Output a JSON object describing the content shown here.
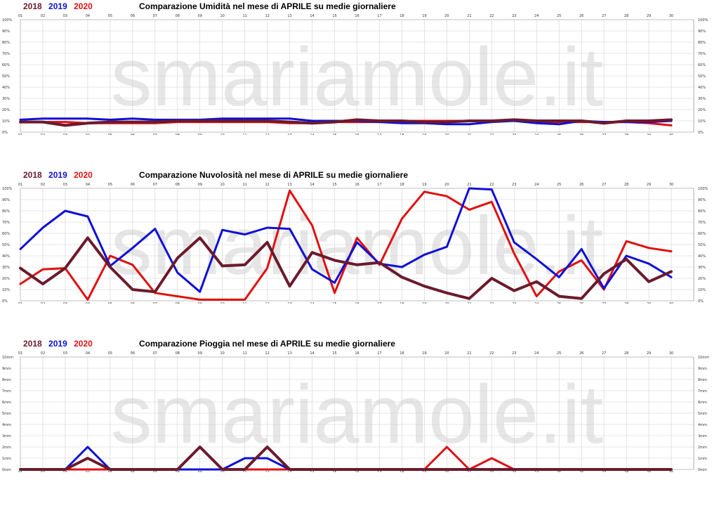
{
  "colors": {
    "2018": "#6b1a2c",
    "2019": "#0f0fd6",
    "2020": "#e01010"
  },
  "watermark": "smariamole.it",
  "chart_data": [
    {
      "type": "line",
      "title": "Comparazione Umidità nel mese di APRILE su medie giornaliere",
      "ylim": [
        0,
        100
      ],
      "y_ticks": [
        "0%",
        "10%",
        "20%",
        "30%",
        "40%",
        "50%",
        "60%",
        "70%",
        "80%",
        "90%",
        "100%"
      ],
      "x": [
        "01",
        "02",
        "03",
        "04",
        "05",
        "06",
        "07",
        "08",
        "09",
        "10",
        "11",
        "12",
        "13",
        "14",
        "15",
        "16",
        "17",
        "18",
        "19",
        "20",
        "21",
        "22",
        "23",
        "24",
        "25",
        "26",
        "27",
        "28",
        "29",
        "30"
      ],
      "series": [
        {
          "name": "2018",
          "values": [
            9,
            9,
            6,
            8,
            9,
            9,
            9,
            10,
            10,
            10,
            10,
            10,
            9,
            8,
            9,
            11,
            10,
            10,
            9,
            9,
            10,
            10,
            11,
            10,
            10,
            10,
            8,
            10,
            10,
            11
          ]
        },
        {
          "name": "2019",
          "values": [
            11,
            12,
            12,
            12,
            11,
            12,
            11,
            11,
            11,
            12,
            12,
            12,
            12,
            10,
            10,
            10,
            9,
            8,
            8,
            7,
            7,
            9,
            10,
            8,
            7,
            10,
            9,
            9,
            9,
            10
          ]
        },
        {
          "name": "2020",
          "values": [
            9,
            9,
            9,
            8,
            8,
            8,
            8,
            9,
            9,
            9,
            9,
            9,
            8,
            8,
            9,
            9,
            9,
            10,
            10,
            10,
            10,
            10,
            10,
            9,
            9,
            9,
            9,
            9,
            8,
            6
          ]
        }
      ]
    },
    {
      "type": "line",
      "title": "Comparazione Nuvolosità nel mese di APRILE su medie giornaliere",
      "ylim": [
        0,
        100
      ],
      "y_ticks": [
        "0%",
        "10%",
        "20%",
        "30%",
        "40%",
        "50%",
        "60%",
        "70%",
        "80%",
        "90%",
        "100%"
      ],
      "x": [
        "01",
        "02",
        "03",
        "04",
        "05",
        "06",
        "07",
        "08",
        "09",
        "10",
        "11",
        "12",
        "13",
        "14",
        "15",
        "16",
        "17",
        "18",
        "19",
        "20",
        "21",
        "22",
        "23",
        "24",
        "25",
        "26",
        "27",
        "28",
        "29",
        "30"
      ],
      "series": [
        {
          "name": "2018",
          "values": [
            29,
            15,
            29,
            56,
            30,
            10,
            8,
            38,
            56,
            31,
            32,
            52,
            13,
            43,
            36,
            32,
            34,
            21,
            13,
            7,
            2,
            20,
            9,
            17,
            4,
            2,
            24,
            37,
            17,
            26
          ]
        },
        {
          "name": "2019",
          "values": [
            46,
            65,
            80,
            75,
            31,
            47,
            64,
            25,
            8,
            63,
            59,
            65,
            64,
            28,
            16,
            52,
            33,
            30,
            41,
            48,
            100,
            99,
            52,
            37,
            21,
            46,
            11,
            40,
            33,
            21
          ]
        },
        {
          "name": "2020",
          "values": [
            15,
            28,
            29,
            1,
            40,
            32,
            7,
            4,
            1,
            1,
            1,
            29,
            98,
            67,
            7,
            56,
            32,
            73,
            97,
            93,
            81,
            88,
            42,
            4,
            26,
            36,
            10,
            53,
            47,
            44
          ]
        }
      ]
    },
    {
      "type": "line",
      "title": "Comparazione Pioggia nel mese di APRILE su medie giornaliere",
      "ylim": [
        0,
        10
      ],
      "y_ticks": [
        "0mm",
        "1mm",
        "2mm",
        "3mm",
        "4mm",
        "5mm",
        "6mm",
        "7mm",
        "8mm",
        "9mm",
        "10mm"
      ],
      "x": [
        "01",
        "02",
        "03",
        "04",
        "05",
        "06",
        "07",
        "08",
        "09",
        "10",
        "11",
        "12",
        "13",
        "14",
        "15",
        "16",
        "17",
        "18",
        "19",
        "20",
        "21",
        "22",
        "23",
        "24",
        "25",
        "26",
        "27",
        "28",
        "29",
        "30"
      ],
      "series": [
        {
          "name": "2018",
          "values": [
            0,
            0,
            0,
            1,
            0,
            0,
            0,
            0,
            2,
            0,
            0,
            2,
            0,
            0,
            0,
            0,
            0,
            0,
            0,
            0,
            0,
            0,
            0,
            0,
            0,
            0,
            0,
            0,
            0,
            0
          ]
        },
        {
          "name": "2019",
          "values": [
            0,
            0,
            0,
            2,
            0,
            0,
            0,
            0,
            0,
            0,
            1,
            1,
            0,
            0,
            0,
            0,
            0,
            0,
            0,
            0,
            0,
            0,
            0,
            0,
            0,
            0,
            0,
            0,
            0,
            0
          ]
        },
        {
          "name": "2020",
          "values": [
            0,
            0,
            0,
            0,
            0,
            0,
            0,
            0,
            0,
            0,
            0,
            0,
            0,
            0,
            0,
            0,
            0,
            0,
            0,
            2,
            0,
            1,
            0,
            0,
            0,
            0,
            0,
            0,
            0,
            0
          ]
        }
      ]
    }
  ]
}
